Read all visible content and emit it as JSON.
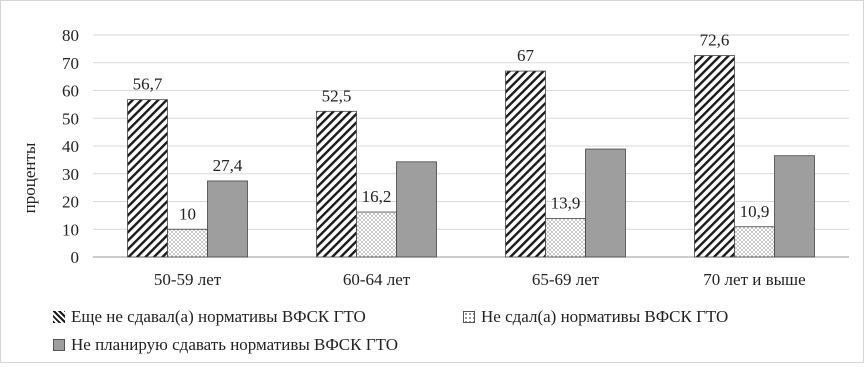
{
  "chart_data": {
    "type": "bar",
    "title": "",
    "xlabel": "",
    "ylabel": "проценты",
    "ylim": [
      0,
      80
    ],
    "ytick_step": 10,
    "grid": true,
    "legend_position": "bottom",
    "categories": [
      "50-59 лет",
      "60-64 лет",
      "65-69 лет",
      "70 лет и выше"
    ],
    "series": [
      {
        "name": "Еще не сдавал(а) нормативы ВФСК ГТО",
        "values": [
          56.7,
          52.5,
          67,
          72.6
        ],
        "labels": [
          "56,7",
          "52,5",
          "67",
          "72,6"
        ],
        "fill": "hatch",
        "color": "#1a1a1a"
      },
      {
        "name": "Не сдал(а) нормативы ВФСК ГТО",
        "values": [
          10,
          16.2,
          13.9,
          10.9
        ],
        "labels": [
          "10",
          "16,2",
          "13,9",
          "10,9"
        ],
        "fill": "dots",
        "color": "#888888"
      },
      {
        "name": "Не планирую сдавать нормативы ВФСК ГТО",
        "values": [
          27.4,
          34.3,
          38.9,
          36.5
        ],
        "labels": [
          "27,4",
          "",
          "",
          ""
        ],
        "fill": "solid",
        "color": "#9e9e9e"
      }
    ]
  }
}
